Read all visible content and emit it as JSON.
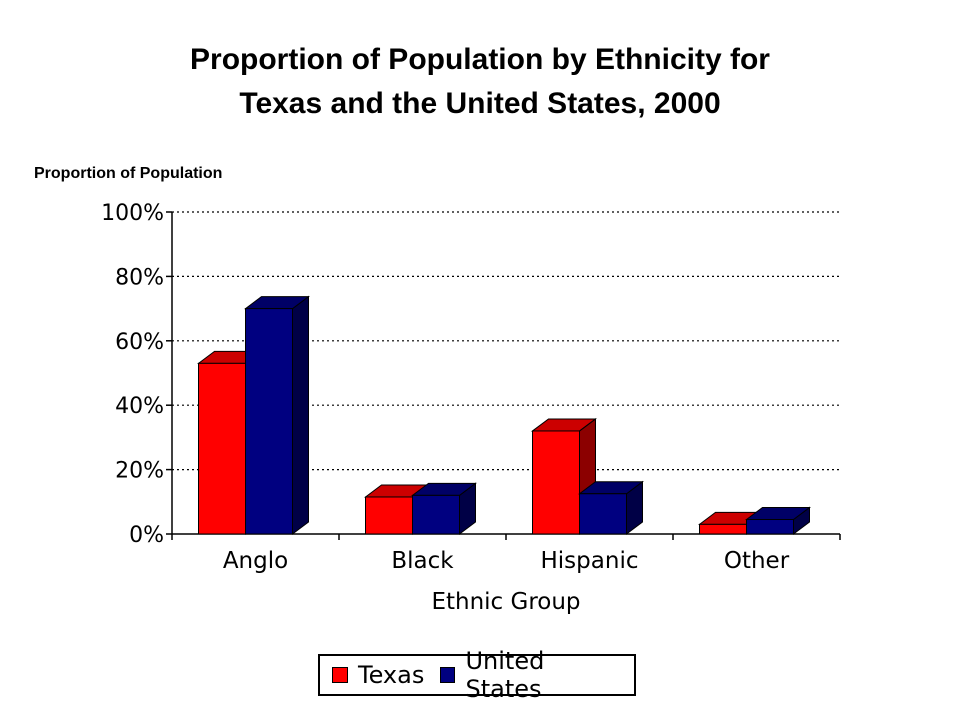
{
  "chart_data": {
    "type": "bar",
    "title_line1": "Proportion of Population by Ethnicity for",
    "title_line2": "Texas and the United States, 2000",
    "ylabel": "Proportion of Population",
    "xlabel": "Ethnic Group",
    "categories": [
      "Anglo",
      "Black",
      "Hispanic",
      "Other"
    ],
    "series": [
      {
        "name": "Texas",
        "color": "#ff0000",
        "values": [
          0.53,
          0.115,
          0.32,
          0.03
        ]
      },
      {
        "name": "United States",
        "color": "#000080",
        "values": [
          0.7,
          0.12,
          0.125,
          0.045
        ]
      }
    ],
    "ylim": [
      0,
      1
    ],
    "yticks": [
      "0%",
      "20%",
      "40%",
      "60%",
      "80%",
      "100%"
    ],
    "grid": true,
    "legend_position": "bottom"
  }
}
